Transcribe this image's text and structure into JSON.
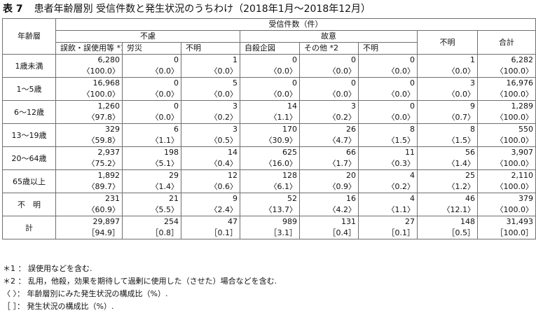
{
  "title": {
    "table_no": "表 7",
    "text": "患者年齢層別 受信件数と発生状況のうちわけ（2018年1月～2018年12月）"
  },
  "header": {
    "age_group": "年齢層",
    "received_count": "受信件数（件）",
    "unintentional": "不慮",
    "intentional": "故意",
    "unknown": "不明",
    "total": "合計",
    "sub": [
      "誤飲・誤使用等 *1",
      "労災",
      "不明",
      "自殺企図",
      "その他 *2",
      "不明"
    ]
  },
  "rows": [
    {
      "age": "1歳未満",
      "counts": [
        "6,280",
        "0",
        "1",
        "0",
        "0",
        "0",
        "1",
        "6,282"
      ],
      "ratios": [
        "〈100.0〉",
        "〈0.0〉",
        "〈0.0〉",
        "〈0.0〉",
        "〈0.0〉",
        "〈0.0〉",
        "〈0.0〉",
        "〈100.0〉"
      ]
    },
    {
      "age": "1～5歳",
      "counts": [
        "16,968",
        "0",
        "5",
        "0",
        "0",
        "0",
        "3",
        "16,976"
      ],
      "ratios": [
        "〈100.0〉",
        "〈0.0〉",
        "〈0.0〉",
        "〈0.0〉",
        "〈0.0〉",
        "〈0.0〉",
        "〈0.0〉",
        "〈100.0〉"
      ]
    },
    {
      "age": "6～12歳",
      "counts": [
        "1,260",
        "0",
        "3",
        "14",
        "3",
        "0",
        "9",
        "1,289"
      ],
      "ratios": [
        "〈97.8〉",
        "〈0.0〉",
        "〈0.2〉",
        "〈1.1〉",
        "〈0.2〉",
        "〈0.0〉",
        "〈0.7〉",
        "〈100.0〉"
      ]
    },
    {
      "age": "13～19歳",
      "counts": [
        "329",
        "6",
        "3",
        "170",
        "26",
        "8",
        "8",
        "550"
      ],
      "ratios": [
        "〈59.8〉",
        "〈1.1〉",
        "〈0.5〉",
        "〈30.9〉",
        "〈4.7〉",
        "〈1.5〉",
        "〈1.5〉",
        "〈100.0〉"
      ]
    },
    {
      "age": "20～64歳",
      "counts": [
        "2,937",
        "198",
        "14",
        "625",
        "66",
        "11",
        "56",
        "3,907"
      ],
      "ratios": [
        "〈75.2〉",
        "〈5.1〉",
        "〈0.4〉",
        "〈16.0〉",
        "〈1.7〉",
        "〈0.3〉",
        "〈1.4〉",
        "〈100.0〉"
      ]
    },
    {
      "age": "65歳以上",
      "counts": [
        "1,892",
        "29",
        "12",
        "128",
        "20",
        "4",
        "25",
        "2,110"
      ],
      "ratios": [
        "〈89.7〉",
        "〈1.4〉",
        "〈0.6〉",
        "〈6.1〉",
        "〈0.9〉",
        "〈0.2〉",
        "〈1.2〉",
        "〈100.0〉"
      ]
    },
    {
      "age": "不　明",
      "counts": [
        "231",
        "21",
        "9",
        "52",
        "16",
        "4",
        "46",
        "379"
      ],
      "ratios": [
        "〈60.9〉",
        "〈5.5〉",
        "〈2.4〉",
        "〈13.7〉",
        "〈4.2〉",
        "〈1.1〉",
        "〈12.1〉",
        "〈100.0〉"
      ]
    },
    {
      "age": "計",
      "counts": [
        "29,897",
        "254",
        "47",
        "989",
        "131",
        "27",
        "148",
        "31,493"
      ],
      "ratios": [
        "［94.9］",
        "［0.8］",
        "［0.1］",
        "［3.1］",
        "［0.4］",
        "［0.1］",
        "［0.5］",
        "［100.0］"
      ]
    }
  ],
  "notes": [
    "＊1 ： 誤使用などを含む.",
    "＊2 ： 乱用，他殺，効果を期待して過剰に使用した（させた）場合などを含む.",
    "〈 〉： 年齢層別にみた発生状況の構成比（%）.",
    "［ ］： 発生状況の構成比（%）."
  ]
}
